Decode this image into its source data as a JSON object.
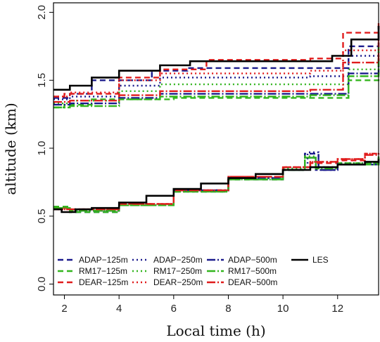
{
  "chart_data": {
    "type": "line",
    "title": "",
    "xlabel": "Local time (h)",
    "ylabel": "altitude (km)",
    "xlim": [
      1.6,
      13.5
    ],
    "ylim": [
      -0.08,
      2.07
    ],
    "xticks": [
      2,
      4,
      6,
      8,
      10,
      12
    ],
    "yticks": [
      0.0,
      0.5,
      1.0,
      1.5,
      2.0
    ],
    "ytick_labels": [
      "0.0",
      "0.5",
      "1.0",
      "1.5",
      "2.0"
    ],
    "grid": false,
    "legend_position": "bottom-left",
    "series": [
      {
        "name": "ADAP−125m",
        "color": "#1a1a8c",
        "dash": "8,5",
        "upper": {
          "x": [
            1.6,
            2.2,
            3.0,
            5.2,
            6.5,
            11.0,
            12.4,
            13.5
          ],
          "y": [
            1.37,
            1.4,
            1.5,
            1.57,
            1.59,
            1.59,
            1.75,
            1.9
          ]
        },
        "lower": {
          "x": [
            1.6,
            2.2,
            4.0,
            6.0,
            8.0,
            10.0,
            10.8,
            11.3,
            12.0,
            13.5
          ],
          "y": [
            0.57,
            0.53,
            0.58,
            0.68,
            0.77,
            0.84,
            0.96,
            0.84,
            0.88,
            0.93
          ]
        }
      },
      {
        "name": "RM17−125m",
        "color": "#33b51e",
        "dash": "8,5",
        "upper": {
          "x": [
            1.6,
            2.0,
            3.0,
            6.0,
            11.0,
            12.4,
            13.5
          ],
          "y": [
            1.3,
            1.32,
            1.36,
            1.37,
            1.37,
            1.5,
            1.62
          ]
        },
        "lower": {
          "x": [
            1.6,
            2.2,
            4.0,
            6.0,
            8.0,
            10.0,
            10.8,
            11.2,
            12.0,
            13.5
          ],
          "y": [
            0.57,
            0.53,
            0.58,
            0.68,
            0.77,
            0.84,
            0.93,
            0.86,
            0.89,
            0.94
          ]
        }
      },
      {
        "name": "DEAR−125m",
        "color": "#e01c1c",
        "dash": "8,5",
        "upper": {
          "x": [
            1.6,
            2.0,
            4.0,
            5.5,
            7.2,
            11.0,
            12.2,
            13.5
          ],
          "y": [
            1.38,
            1.4,
            1.52,
            1.58,
            1.65,
            1.66,
            1.85,
            1.92
          ]
        },
        "lower": {
          "x": [
            1.6,
            2.2,
            4.0,
            6.0,
            8.0,
            10.0,
            11.0,
            12.0,
            13.0,
            13.5
          ],
          "y": [
            0.56,
            0.55,
            0.59,
            0.69,
            0.79,
            0.86,
            0.89,
            0.91,
            0.96,
            0.97
          ]
        }
      },
      {
        "name": "ADAP−250m",
        "color": "#1a1a8c",
        "dash": "2,4",
        "upper": {
          "x": [
            1.6,
            2.2,
            4.0,
            5.5,
            11.0,
            12.4,
            13.5
          ],
          "y": [
            1.36,
            1.38,
            1.46,
            1.52,
            1.53,
            1.68,
            1.82
          ]
        },
        "lower": {
          "x": [
            1.6,
            2.2,
            4.0,
            6.0,
            8.0,
            10.0,
            10.9,
            11.3,
            12.0,
            13.5
          ],
          "y": [
            0.56,
            0.54,
            0.58,
            0.69,
            0.78,
            0.85,
            0.97,
            0.86,
            0.89,
            0.93
          ]
        }
      },
      {
        "name": "RM17−250m",
        "color": "#33b51e",
        "dash": "2,4",
        "upper": {
          "x": [
            1.6,
            2.2,
            4.0,
            5.5,
            11.0,
            12.4,
            13.5
          ],
          "y": [
            1.33,
            1.35,
            1.42,
            1.47,
            1.47,
            1.58,
            1.71
          ]
        },
        "lower": {
          "x": [
            1.6,
            2.2,
            4.0,
            6.0,
            8.0,
            10.0,
            10.8,
            11.2,
            12.0,
            13.5
          ],
          "y": [
            0.56,
            0.54,
            0.58,
            0.68,
            0.78,
            0.85,
            0.94,
            0.86,
            0.89,
            0.94
          ]
        }
      },
      {
        "name": "DEAR−250m",
        "color": "#e01c1c",
        "dash": "2,4",
        "upper": {
          "x": [
            1.6,
            2.2,
            4.0,
            5.5,
            11.0,
            12.2,
            13.5
          ],
          "y": [
            1.38,
            1.41,
            1.5,
            1.55,
            1.57,
            1.72,
            1.83
          ]
        },
        "lower": {
          "x": [
            1.6,
            2.2,
            4.0,
            6.0,
            8.0,
            10.0,
            11.0,
            12.0,
            13.0,
            13.5
          ],
          "y": [
            0.55,
            0.55,
            0.59,
            0.69,
            0.79,
            0.86,
            0.9,
            0.92,
            0.96,
            0.97
          ]
        }
      },
      {
        "name": "ADAP−500m",
        "color": "#1a1a8c",
        "dash": "12,3,2,3",
        "upper": {
          "x": [
            1.6,
            2.2,
            4.0,
            5.5,
            11.0,
            12.4,
            13.5
          ],
          "y": [
            1.32,
            1.33,
            1.37,
            1.4,
            1.4,
            1.55,
            1.66
          ]
        },
        "lower": {
          "x": [
            1.6,
            2.2,
            4.0,
            6.0,
            8.0,
            10.0,
            10.8,
            11.2,
            12.0,
            13.5
          ],
          "y": [
            0.56,
            0.54,
            0.58,
            0.69,
            0.78,
            0.84,
            0.93,
            0.84,
            0.88,
            0.93
          ]
        }
      },
      {
        "name": "RM17−500m",
        "color": "#33b51e",
        "dash": "12,3,2,3",
        "upper": {
          "x": [
            1.6,
            2.2,
            4.0,
            5.5,
            11.0,
            12.4,
            13.5
          ],
          "y": [
            1.3,
            1.31,
            1.36,
            1.38,
            1.39,
            1.53,
            1.75
          ]
        },
        "lower": {
          "x": [
            1.6,
            2.2,
            4.0,
            6.0,
            8.0,
            10.0,
            10.8,
            11.2,
            12.0,
            13.5
          ],
          "y": [
            0.56,
            0.54,
            0.58,
            0.68,
            0.77,
            0.84,
            0.93,
            0.85,
            0.88,
            0.93
          ]
        }
      },
      {
        "name": "DEAR−500m",
        "color": "#e01c1c",
        "dash": "12,3,2,3",
        "upper": {
          "x": [
            1.6,
            2.2,
            4.0,
            5.5,
            11.0,
            12.2,
            13.5
          ],
          "y": [
            1.34,
            1.35,
            1.39,
            1.42,
            1.43,
            1.63,
            1.78
          ]
        },
        "lower": {
          "x": [
            1.6,
            2.2,
            4.0,
            6.0,
            8.0,
            10.0,
            11.0,
            12.0,
            13.0,
            13.5
          ],
          "y": [
            0.55,
            0.55,
            0.59,
            0.69,
            0.79,
            0.86,
            0.9,
            0.92,
            0.95,
            0.96
          ]
        }
      },
      {
        "name": "LES",
        "color": "#000000",
        "dash": "",
        "upper": {
          "x": [
            1.6,
            2.2,
            3.0,
            4.0,
            5.5,
            6.6,
            8.0,
            11.0,
            11.8,
            12.5,
            13.5
          ],
          "y": [
            1.43,
            1.46,
            1.52,
            1.57,
            1.61,
            1.64,
            1.64,
            1.64,
            1.68,
            1.8,
            1.9
          ]
        },
        "lower": {
          "x": [
            1.6,
            1.9,
            2.4,
            3.0,
            4.0,
            5.0,
            6.0,
            7.0,
            8.0,
            9.0,
            10.0,
            11.0,
            12.0,
            13.0,
            13.5
          ],
          "y": [
            0.55,
            0.53,
            0.55,
            0.56,
            0.6,
            0.65,
            0.7,
            0.74,
            0.78,
            0.81,
            0.84,
            0.86,
            0.88,
            0.9,
            0.92
          ]
        }
      }
    ]
  }
}
